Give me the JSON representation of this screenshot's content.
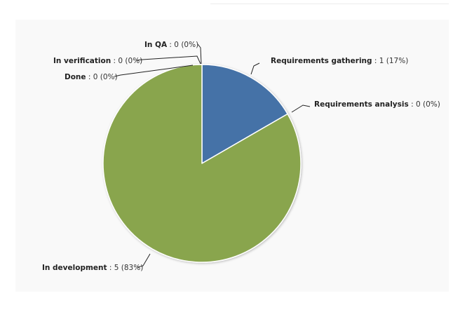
{
  "chart_data": {
    "type": "pie",
    "slices": [
      {
        "name": "Requirements gathering",
        "value": 1,
        "percent": "17%",
        "color": "#4572a7"
      },
      {
        "name": "Requirements analysis",
        "value": 0,
        "percent": "0%",
        "color": "#aa4643"
      },
      {
        "name": "In development",
        "value": 5,
        "percent": "83%",
        "color": "#89a54e"
      },
      {
        "name": "Done",
        "value": 0,
        "percent": "0%",
        "color": "#80699b"
      },
      {
        "name": "In verification",
        "value": 0,
        "percent": "0%",
        "color": "#3d96ae"
      },
      {
        "name": "In QA",
        "value": 0,
        "percent": "0%",
        "color": "#db843d"
      }
    ]
  }
}
